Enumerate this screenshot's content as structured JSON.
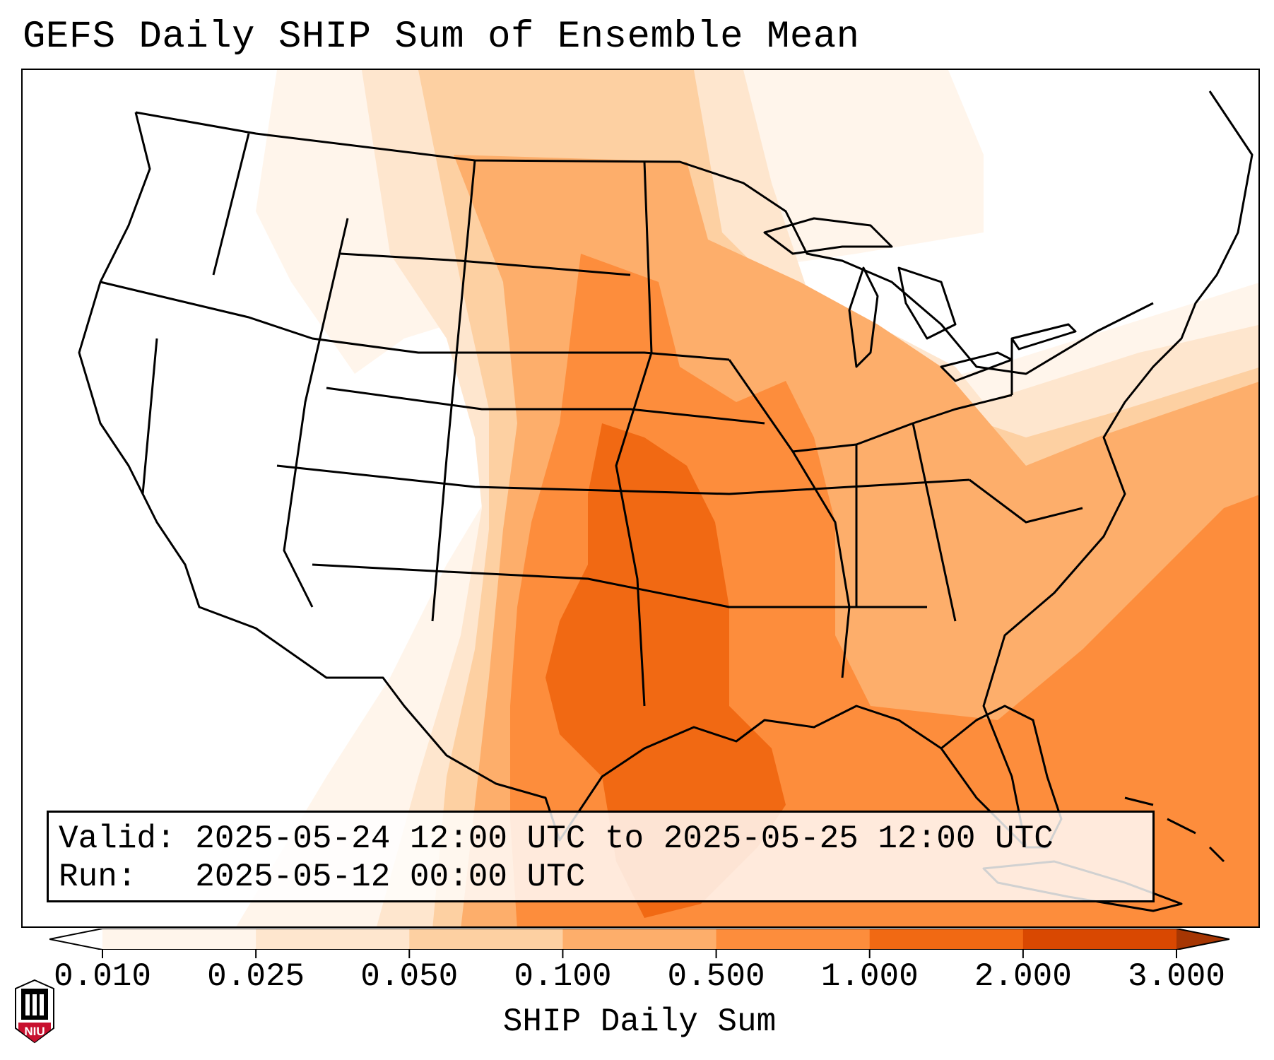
{
  "title": "GEFS Daily SHIP Sum of Ensemble Mean",
  "info": {
    "valid_label": "Valid:",
    "valid_value": "2025-05-24 12:00 UTC to 2025-05-25 12:00 UTC",
    "run_label": "Run:",
    "run_value": "2025-05-12 00:00 UTC"
  },
  "colorbar": {
    "title": "SHIP Daily Sum",
    "ticks": [
      "0.010",
      "0.025",
      "0.050",
      "0.100",
      "0.500",
      "1.000",
      "2.000",
      "3.000"
    ],
    "colors": [
      "#fff5eb",
      "#fee6ce",
      "#fdd0a2",
      "#fdae6b",
      "#fd8d3c",
      "#f16913",
      "#d94801",
      "#a63603"
    ]
  },
  "logo": {
    "text": "NIU"
  },
  "map": {
    "region": "Contiguous United States",
    "shading_colors": {
      "faint": "#fff5eb",
      "light": "#fee6ce",
      "tan": "#fdd0a2",
      "peach": "#fdae6b",
      "orange": "#fd8d3c",
      "dark_orange": "#f16913"
    }
  }
}
